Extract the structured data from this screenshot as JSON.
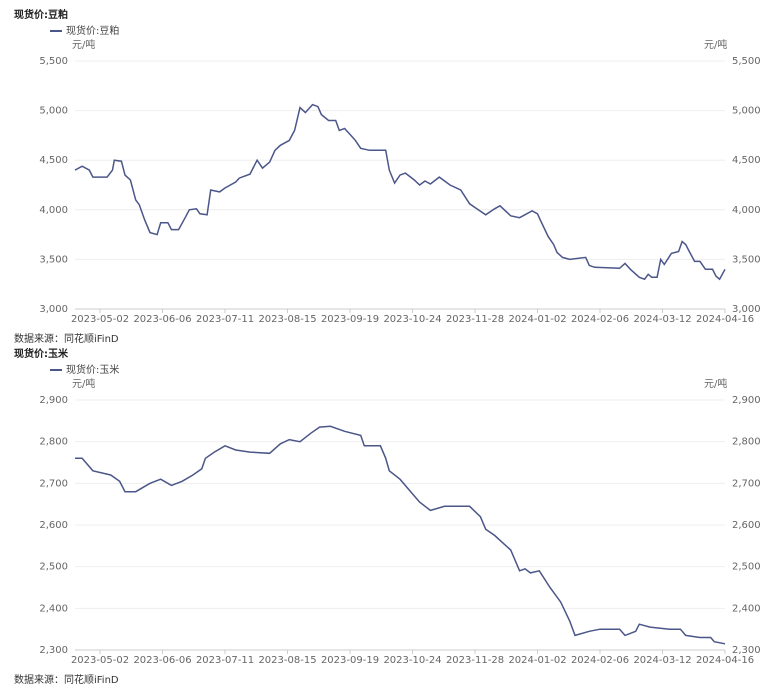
{
  "chart_data": [
    {
      "type": "line",
      "title": "现货价:豆粕",
      "y_unit": "元/吨",
      "source": "数据来源：同花顺iFinD",
      "xlim": [
        "2023-04-18",
        "2024-04-16"
      ],
      "xticks": [
        "2023-05-02",
        "2023-06-06",
        "2023-07-11",
        "2023-08-15",
        "2023-09-19",
        "2023-10-24",
        "2023-11-28",
        "2024-01-02",
        "2024-02-06",
        "2024-03-12",
        "2024-04-16"
      ],
      "ylim": [
        3000,
        5500
      ],
      "yticks": [
        {
          "value": 3000,
          "label": "3,000"
        },
        {
          "value": 3500,
          "label": "3,500"
        },
        {
          "value": 4000,
          "label": "4,000"
        },
        {
          "value": 4500,
          "label": "4,500"
        },
        {
          "value": 5000,
          "label": "5,000"
        },
        {
          "value": 5500,
          "label": "5,500"
        }
      ],
      "grid": true,
      "x": [
        "2023-04-18",
        "2023-04-22",
        "2023-04-26",
        "2023-04-28",
        "2023-05-06",
        "2023-05-09",
        "2023-05-10",
        "2023-05-14",
        "2023-05-16",
        "2023-05-19",
        "2023-05-22",
        "2023-05-24",
        "2023-05-27",
        "2023-05-30",
        "2023-06-03",
        "2023-06-05",
        "2023-06-09",
        "2023-06-11",
        "2023-06-15",
        "2023-06-19",
        "2023-06-21",
        "2023-06-25",
        "2023-06-27",
        "2023-07-01",
        "2023-07-03",
        "2023-07-08",
        "2023-07-11",
        "2023-07-17",
        "2023-07-19",
        "2023-07-25",
        "2023-07-29",
        "2023-08-01",
        "2023-08-05",
        "2023-08-08",
        "2023-08-11",
        "2023-08-16",
        "2023-08-19",
        "2023-08-22",
        "2023-08-25",
        "2023-08-29",
        "2023-09-01",
        "2023-09-03",
        "2023-09-07",
        "2023-09-11",
        "2023-09-13",
        "2023-09-16",
        "2023-09-19",
        "2023-09-22",
        "2023-09-25",
        "2023-09-30",
        "2023-10-09",
        "2023-10-11",
        "2023-10-14",
        "2023-10-17",
        "2023-10-20",
        "2023-10-25",
        "2023-10-28",
        "2023-10-31",
        "2023-11-03",
        "2023-11-08",
        "2023-11-14",
        "2023-11-20",
        "2023-11-25",
        "2023-11-29",
        "2023-12-04",
        "2023-12-09",
        "2023-12-12",
        "2023-12-18",
        "2023-12-23",
        "2023-12-30",
        "2024-01-02",
        "2024-01-04",
        "2024-01-08",
        "2024-01-11",
        "2024-01-13",
        "2024-01-16",
        "2024-01-20",
        "2024-01-29",
        "2024-01-31",
        "2024-02-03",
        "2024-02-17",
        "2024-02-20",
        "2024-02-23",
        "2024-02-28",
        "2024-03-02",
        "2024-03-04",
        "2024-03-06",
        "2024-03-09",
        "2024-03-11",
        "2024-03-13",
        "2024-03-17",
        "2024-03-21",
        "2024-03-23",
        "2024-03-25",
        "2024-03-27",
        "2024-03-30",
        "2024-04-02",
        "2024-04-05",
        "2024-04-09",
        "2024-04-11",
        "2024-04-13",
        "2024-04-16"
      ],
      "series": [
        {
          "name": "现货价:豆粕",
          "color": "#4b5689",
          "values": [
            4400,
            4440,
            4400,
            4330,
            4330,
            4400,
            4500,
            4490,
            4350,
            4300,
            4100,
            4050,
            3900,
            3770,
            3750,
            3870,
            3870,
            3800,
            3800,
            3930,
            4000,
            4010,
            3960,
            3950,
            4200,
            4180,
            4220,
            4280,
            4320,
            4360,
            4500,
            4420,
            4480,
            4600,
            4650,
            4700,
            4800,
            5030,
            4980,
            5060,
            5040,
            4960,
            4900,
            4900,
            4800,
            4820,
            4760,
            4700,
            4620,
            4600,
            4600,
            4400,
            4270,
            4350,
            4370,
            4300,
            4250,
            4290,
            4260,
            4330,
            4250,
            4200,
            4060,
            4010,
            3950,
            4010,
            4040,
            3940,
            3920,
            3990,
            3960,
            3880,
            3730,
            3650,
            3570,
            3520,
            3500,
            3520,
            3440,
            3420,
            3410,
            3460,
            3400,
            3320,
            3300,
            3350,
            3320,
            3320,
            3500,
            3450,
            3560,
            3580,
            3680,
            3650,
            3580,
            3480,
            3480,
            3400,
            3400,
            3330,
            3300,
            3400
          ]
        }
      ]
    },
    {
      "type": "line",
      "title": "现货价:玉米",
      "y_unit": "元/吨",
      "source": "数据来源：同花顺iFinD",
      "xlim": [
        "2023-04-18",
        "2024-04-16"
      ],
      "xticks": [
        "2023-05-02",
        "2023-06-06",
        "2023-07-11",
        "2023-08-15",
        "2023-09-19",
        "2023-10-24",
        "2023-11-28",
        "2024-01-02",
        "2024-02-06",
        "2024-03-12",
        "2024-04-16"
      ],
      "ylim": [
        2300,
        2900
      ],
      "yticks": [
        {
          "value": 2300,
          "label": "2,300"
        },
        {
          "value": 2400,
          "label": "2,400"
        },
        {
          "value": 2500,
          "label": "2,500"
        },
        {
          "value": 2600,
          "label": "2,600"
        },
        {
          "value": 2700,
          "label": "2,700"
        },
        {
          "value": 2800,
          "label": "2,800"
        },
        {
          "value": 2900,
          "label": "2,900"
        }
      ],
      "grid": true,
      "x": [
        "2023-04-18",
        "2023-04-22",
        "2023-04-28",
        "2023-05-08",
        "2023-05-13",
        "2023-05-16",
        "2023-05-22",
        "2023-05-30",
        "2023-06-05",
        "2023-06-11",
        "2023-06-17",
        "2023-06-23",
        "2023-06-28",
        "2023-06-30",
        "2023-07-05",
        "2023-07-11",
        "2023-07-17",
        "2023-07-25",
        "2023-08-05",
        "2023-08-11",
        "2023-08-16",
        "2023-08-22",
        "2023-08-28",
        "2023-09-02",
        "2023-09-08",
        "2023-09-16",
        "2023-09-25",
        "2023-09-27",
        "2023-10-06",
        "2023-10-09",
        "2023-10-11",
        "2023-10-17",
        "2023-10-23",
        "2023-10-28",
        "2023-11-03",
        "2023-11-11",
        "2023-11-20",
        "2023-11-25",
        "2023-12-01",
        "2023-12-04",
        "2023-12-09",
        "2023-12-18",
        "2023-12-23",
        "2023-12-26",
        "2023-12-29",
        "2024-01-03",
        "2024-01-09",
        "2024-01-15",
        "2024-01-20",
        "2024-01-23",
        "2024-01-31",
        "2024-02-06",
        "2024-02-17",
        "2024-02-20",
        "2024-02-26",
        "2024-02-28",
        "2024-03-05",
        "2024-03-16",
        "2024-03-22",
        "2024-03-25",
        "2024-04-02",
        "2024-04-08",
        "2024-04-10",
        "2024-04-16"
      ],
      "series": [
        {
          "name": "现货价:玉米",
          "color": "#4b5689",
          "values": [
            2760,
            2760,
            2730,
            2720,
            2705,
            2680,
            2680,
            2700,
            2710,
            2695,
            2705,
            2720,
            2735,
            2760,
            2775,
            2790,
            2780,
            2775,
            2772,
            2795,
            2805,
            2800,
            2820,
            2835,
            2837,
            2825,
            2815,
            2790,
            2790,
            2760,
            2730,
            2710,
            2680,
            2655,
            2635,
            2645,
            2645,
            2645,
            2620,
            2590,
            2575,
            2540,
            2490,
            2495,
            2485,
            2490,
            2450,
            2415,
            2370,
            2335,
            2345,
            2350,
            2350,
            2335,
            2345,
            2362,
            2355,
            2350,
            2350,
            2335,
            2330,
            2330,
            2320,
            2315
          ]
        }
      ]
    }
  ]
}
